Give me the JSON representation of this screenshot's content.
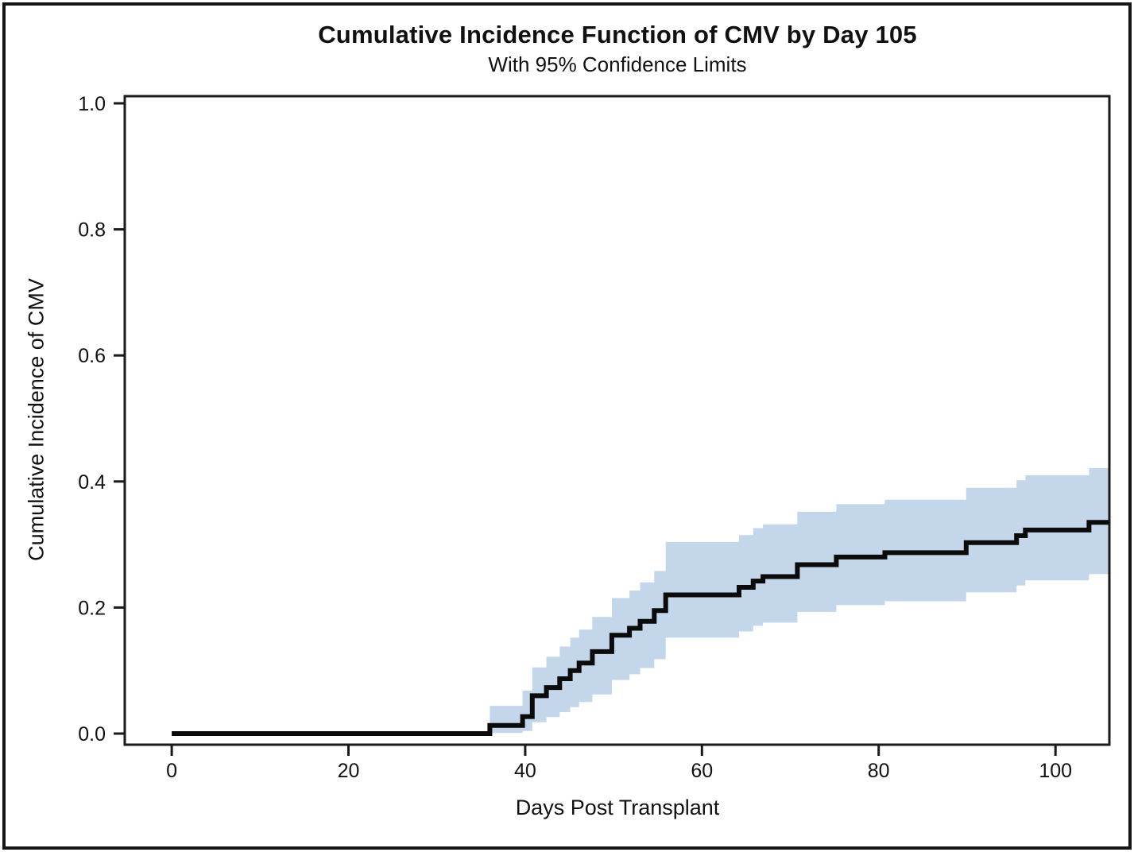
{
  "figure": {
    "title": "Cumulative Incidence Function of CMV by Day 105",
    "subtitle": "With 95% Confidence Limits",
    "xlabel": "Days Post Transplant",
    "ylabel": "Cumulative Incidence of CMV"
  },
  "colors": {
    "band": "#c3d6ea",
    "curve": "#0b0b0b",
    "frame": "#1a1a1a",
    "tick": "#1a1a1a",
    "text": "#111111",
    "background": "#ffffff"
  },
  "chart_data": {
    "type": "line",
    "subtype": "step-function-cumulative-incidence",
    "title": "Cumulative Incidence Function of CMV by Day 105",
    "subtitle": "With 95% Confidence Limits",
    "xlabel": "Days Post Transplant",
    "ylabel": "Cumulative Incidence of CMV",
    "xlim": [
      -5.31,
      106.1
    ],
    "ylim": [
      -0.0177,
      1.0114
    ],
    "x_end": 106.1,
    "grid": false,
    "legend": "none",
    "x_ticks": [
      0,
      20,
      40,
      60,
      80,
      100
    ],
    "x_tick_labels": [
      "0",
      "20",
      "40",
      "60",
      "80",
      "100"
    ],
    "y_ticks": [
      0.0,
      0.2,
      0.4,
      0.6,
      0.8,
      1.0
    ],
    "y_tick_labels": [
      "0.0",
      "0.2",
      "0.4",
      "0.6",
      "0.8",
      "1.0"
    ],
    "series": [
      {
        "name": "CMV cumulative incidence estimate",
        "style": "step",
        "color": "#0b0b0b",
        "line_width": 6,
        "points": [
          [
            0,
            0.0
          ],
          [
            36.0,
            0.013
          ],
          [
            39.7,
            0.027
          ],
          [
            40.8,
            0.06
          ],
          [
            42.4,
            0.073
          ],
          [
            43.9,
            0.087
          ],
          [
            45.1,
            0.1
          ],
          [
            46.1,
            0.112
          ],
          [
            47.6,
            0.13
          ],
          [
            49.8,
            0.156
          ],
          [
            51.8,
            0.167
          ],
          [
            53.0,
            0.178
          ],
          [
            54.6,
            0.195
          ],
          [
            55.9,
            0.22
          ],
          [
            64.2,
            0.232
          ],
          [
            65.8,
            0.242
          ],
          [
            66.9,
            0.249
          ],
          [
            70.8,
            0.268
          ],
          [
            75.2,
            0.28
          ],
          [
            80.7,
            0.287
          ],
          [
            89.9,
            0.303
          ],
          [
            95.6,
            0.314
          ],
          [
            96.6,
            0.323
          ],
          [
            103.8,
            0.335
          ]
        ]
      }
    ],
    "band": {
      "name": "95% confidence limits",
      "color": "#c3d6ea",
      "start_day": 36.0,
      "upper": [
        [
          36.0,
          0.044
        ],
        [
          39.7,
          0.068
        ],
        [
          40.8,
          0.105
        ],
        [
          42.4,
          0.122
        ],
        [
          43.9,
          0.138
        ],
        [
          45.1,
          0.152
        ],
        [
          46.1,
          0.165
        ],
        [
          47.6,
          0.185
        ],
        [
          49.8,
          0.215
        ],
        [
          51.8,
          0.227
        ],
        [
          53.0,
          0.24
        ],
        [
          54.6,
          0.258
        ],
        [
          55.9,
          0.304
        ],
        [
          64.2,
          0.315
        ],
        [
          65.8,
          0.326
        ],
        [
          66.9,
          0.332
        ],
        [
          70.8,
          0.352
        ],
        [
          75.2,
          0.364
        ],
        [
          80.7,
          0.371
        ],
        [
          89.9,
          0.39
        ],
        [
          95.6,
          0.402
        ],
        [
          96.6,
          0.41
        ],
        [
          103.8,
          0.421
        ]
      ],
      "lower": [
        [
          36.0,
          0.001
        ],
        [
          39.7,
          0.004
        ],
        [
          40.8,
          0.018
        ],
        [
          42.4,
          0.026
        ],
        [
          43.9,
          0.034
        ],
        [
          45.1,
          0.042
        ],
        [
          46.1,
          0.05
        ],
        [
          47.6,
          0.062
        ],
        [
          49.8,
          0.085
        ],
        [
          51.8,
          0.094
        ],
        [
          53.0,
          0.104
        ],
        [
          54.6,
          0.118
        ],
        [
          55.9,
          0.152
        ],
        [
          64.2,
          0.162
        ],
        [
          65.8,
          0.171
        ],
        [
          66.9,
          0.176
        ],
        [
          70.8,
          0.193
        ],
        [
          75.2,
          0.204
        ],
        [
          80.7,
          0.21
        ],
        [
          89.9,
          0.224
        ],
        [
          95.6,
          0.235
        ],
        [
          96.6,
          0.243
        ],
        [
          103.8,
          0.253
        ]
      ]
    }
  }
}
